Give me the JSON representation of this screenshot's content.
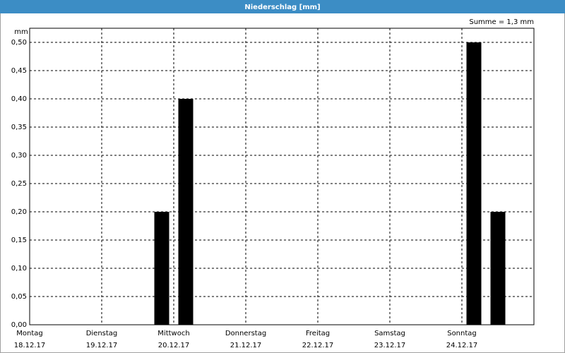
{
  "chart_data": {
    "type": "bar",
    "title": "Niederschlag [mm]",
    "annotation": "Summe = 1,3 mm",
    "y_label": "mm",
    "categories": [
      null,
      null,
      null,
      null,
      null,
      null,
      null,
      null,
      null,
      null,
      null,
      null,
      null,
      null,
      null,
      null,
      null,
      null,
      null,
      null,
      null
    ],
    "values": [
      0,
      0,
      0,
      0,
      0,
      0.2,
      0.4,
      0,
      0,
      0,
      0,
      0,
      0,
      0,
      0,
      0,
      0,
      0,
      0.5,
      0.2,
      0
    ],
    "color": "#000000",
    "ylim": [
      0,
      0.525
    ],
    "yticks": [
      {
        "value": 0,
        "label": "0,00"
      },
      {
        "value": 0.05,
        "label": "0,05"
      },
      {
        "value": 0.1,
        "label": "0,10"
      },
      {
        "value": 0.15,
        "label": "0,15"
      },
      {
        "value": 0.2,
        "label": "0,20"
      },
      {
        "value": 0.25,
        "label": "0,25"
      },
      {
        "value": 0.3,
        "label": "0,30"
      },
      {
        "value": 0.35,
        "label": "0,35"
      },
      {
        "value": 0.4,
        "label": "0,40"
      },
      {
        "value": 0.45,
        "label": "0,45"
      },
      {
        "value": 0.5,
        "label": "0,50"
      }
    ],
    "days": [
      {
        "name": "Montag",
        "date": "18.12.17"
      },
      {
        "name": "Dienstag",
        "date": "19.12.17"
      },
      {
        "name": "Mittwoch",
        "date": "20.12.17"
      },
      {
        "name": "Donnerstag",
        "date": "21.12.17"
      },
      {
        "name": "Freitag",
        "date": "22.12.17"
      },
      {
        "name": "Samstag",
        "date": "23.12.17"
      },
      {
        "name": "Sonntag",
        "date": "24.12.17"
      }
    ],
    "grid": true
  }
}
